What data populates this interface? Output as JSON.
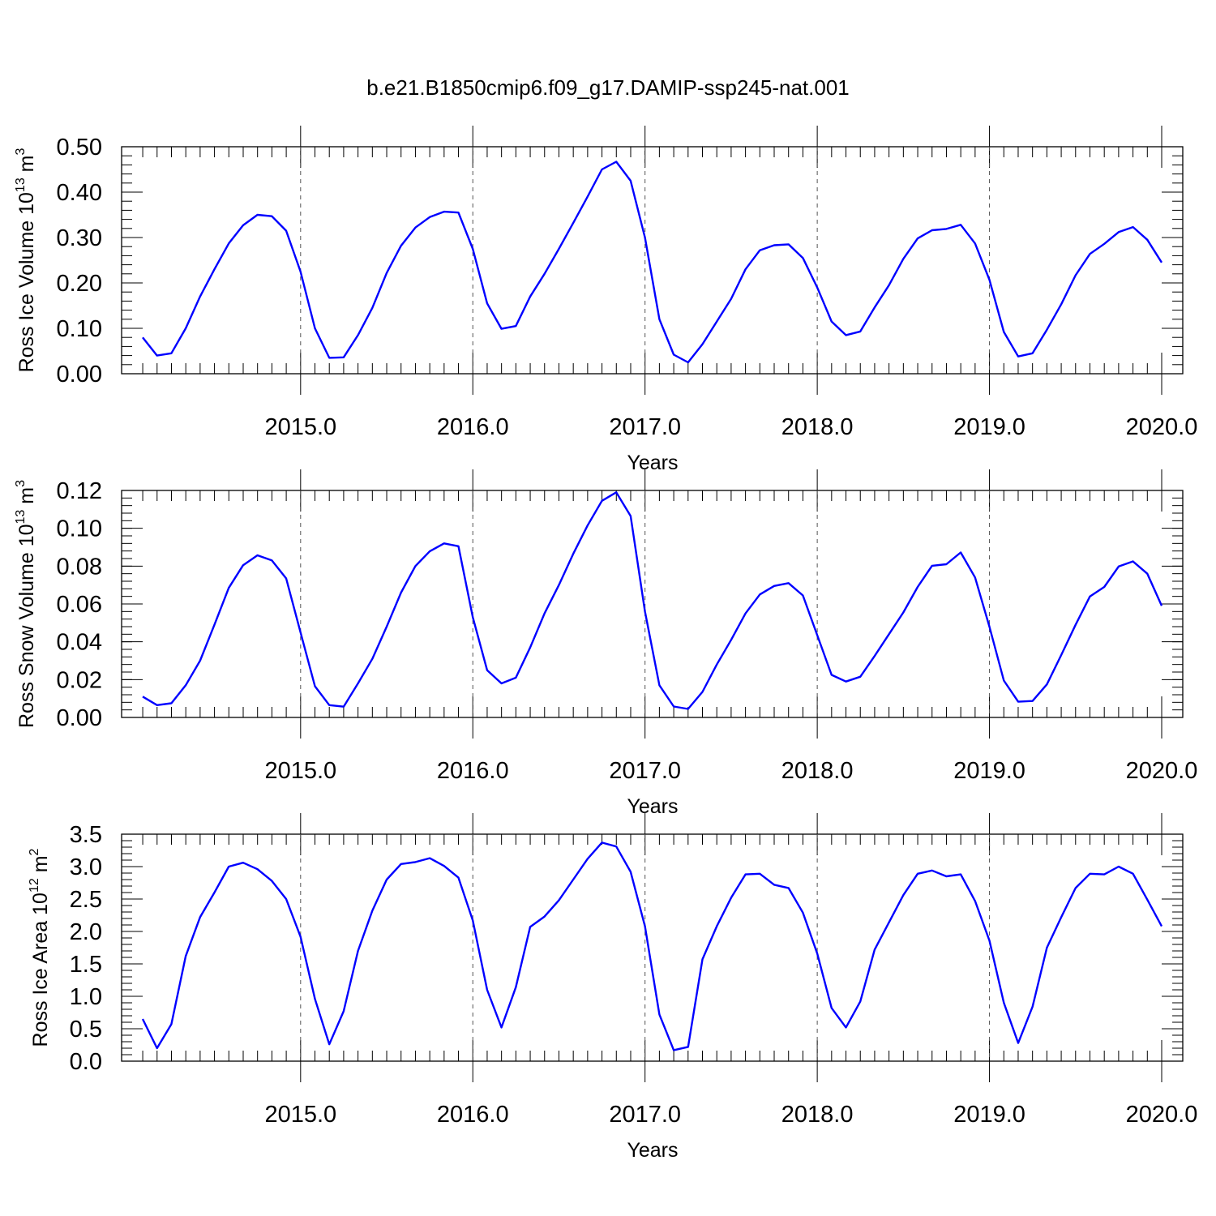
{
  "title": "b.e21.B1850cmip6.f09_g17.DAMIP-ssp245-nat.001",
  "chart_data": [
    {
      "type": "line",
      "xlabel": "Years",
      "ylabel_main": "Ross Ice Volume 10",
      "ylabel_exp": "13",
      "ylabel_unit": "m",
      "ylabel_unit_exp": "3",
      "xlim": [
        2014.083,
        2020.0
      ],
      "ylim": [
        0.0,
        0.5
      ],
      "yticks": [
        "0.00",
        "0.10",
        "0.20",
        "0.30",
        "0.40",
        "0.50"
      ],
      "xticks": [
        "2015.0",
        "2016.0",
        "2017.0",
        "2018.0",
        "2019.0",
        "2020.0"
      ],
      "grid": "dashed vertical lines at year boundaries",
      "line_color": "#0000ff",
      "values": [
        0.08,
        0.04,
        0.045,
        0.1,
        0.17,
        0.23,
        0.287,
        0.327,
        0.35,
        0.347,
        0.315,
        0.225,
        0.1,
        0.035,
        0.036,
        0.085,
        0.145,
        0.222,
        0.282,
        0.322,
        0.345,
        0.357,
        0.355,
        0.275,
        0.155,
        0.099,
        0.105,
        0.17,
        0.22,
        0.275,
        0.332,
        0.39,
        0.45,
        0.467,
        0.425,
        0.3,
        0.12,
        0.042,
        0.025,
        0.065,
        0.115,
        0.165,
        0.23,
        0.272,
        0.283,
        0.285,
        0.255,
        0.19,
        0.115,
        0.085,
        0.093,
        0.146,
        0.195,
        0.253,
        0.298,
        0.316,
        0.319,
        0.328,
        0.287,
        0.207,
        0.092,
        0.038,
        0.045,
        0.097,
        0.153,
        0.217,
        0.264,
        0.286,
        0.312,
        0.323,
        0.295,
        0.245
      ]
    },
    {
      "type": "line",
      "xlabel": "Years",
      "ylabel_main": "Ross Snow Volume 10",
      "ylabel_exp": "13",
      "ylabel_unit": "m",
      "ylabel_unit_exp": "3",
      "xlim": [
        2014.083,
        2020.0
      ],
      "ylim": [
        0.0,
        0.12
      ],
      "yticks": [
        "0.00",
        "0.02",
        "0.04",
        "0.06",
        "0.08",
        "0.10",
        "0.12"
      ],
      "xticks": [
        "2015.0",
        "2016.0",
        "2017.0",
        "2018.0",
        "2019.0",
        "2020.0"
      ],
      "grid": "dashed vertical lines at year boundaries",
      "line_color": "#0000ff",
      "values": [
        0.011,
        0.0065,
        0.0075,
        0.017,
        0.03,
        0.049,
        0.0685,
        0.0805,
        0.0857,
        0.083,
        0.0735,
        0.045,
        0.0165,
        0.0065,
        0.0057,
        0.018,
        0.031,
        0.048,
        0.066,
        0.08,
        0.0878,
        0.092,
        0.0905,
        0.053,
        0.025,
        0.018,
        0.021,
        0.037,
        0.055,
        0.07,
        0.0865,
        0.1015,
        0.1145,
        0.119,
        0.1065,
        0.056,
        0.017,
        0.0058,
        0.0045,
        0.0135,
        0.028,
        0.041,
        0.055,
        0.065,
        0.0695,
        0.071,
        0.0645,
        0.0435,
        0.0225,
        0.019,
        0.0215,
        0.0325,
        0.044,
        0.0555,
        0.069,
        0.0802,
        0.081,
        0.0872,
        0.074,
        0.048,
        0.0195,
        0.0083,
        0.0087,
        0.0175,
        0.033,
        0.049,
        0.064,
        0.069,
        0.0798,
        0.0825,
        0.076,
        0.059
      ]
    },
    {
      "type": "line",
      "xlabel": "Years",
      "ylabel_main": "Ross Ice Area 10",
      "ylabel_exp": "12",
      "ylabel_unit": "m",
      "ylabel_unit_exp": "2",
      "xlim": [
        2014.083,
        2020.0
      ],
      "ylim": [
        0.0,
        3.5
      ],
      "yticks": [
        "0.0",
        "0.5",
        "1.0",
        "1.5",
        "2.0",
        "2.5",
        "3.0",
        "3.5"
      ],
      "xticks": [
        "2015.0",
        "2016.0",
        "2017.0",
        "2018.0",
        "2019.0",
        "2020.0"
      ],
      "grid": "dashed vertical lines at year boundaries",
      "line_color": "#0000ff",
      "values": [
        0.65,
        0.2,
        0.57,
        1.62,
        2.22,
        2.6,
        3.0,
        3.06,
        2.96,
        2.78,
        2.5,
        1.92,
        0.96,
        0.26,
        0.77,
        1.7,
        2.32,
        2.8,
        3.04,
        3.07,
        3.13,
        3.01,
        2.83,
        2.17,
        1.1,
        0.52,
        1.14,
        2.07,
        2.23,
        2.48,
        2.8,
        3.12,
        3.37,
        3.31,
        2.92,
        2.08,
        0.72,
        0.17,
        0.22,
        1.57,
        2.08,
        2.52,
        2.88,
        2.89,
        2.72,
        2.67,
        2.29,
        1.66,
        0.82,
        0.52,
        0.92,
        1.72,
        2.14,
        2.56,
        2.89,
        2.94,
        2.85,
        2.88,
        2.47,
        1.86,
        0.9,
        0.28,
        0.84,
        1.75,
        2.22,
        2.67,
        2.89,
        2.88,
        3.0,
        2.89,
        2.49,
        2.08
      ]
    }
  ]
}
